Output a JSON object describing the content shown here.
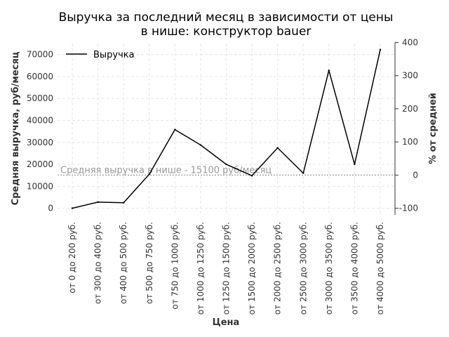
{
  "chart_data": {
    "type": "line",
    "title_lines": [
      "Выручка за последний месяц в зависимости от цены",
      "в нише: конструктор bauer"
    ],
    "xlabel": "Цена",
    "ylabel": "Средняя выручка, руб/месяц",
    "ylabel_right": "% от средней",
    "categories": [
      "от 0 до 200 руб.",
      "от 300 до 400 руб.",
      "от 400 до 500 руб.",
      "от 500 до 750 руб.",
      "от 750 до 1000 руб.",
      "от 1000 до 1250 руб.",
      "от 1250 до 1500 руб.",
      "от 1500 до 2000 руб.",
      "от 2000 до 2500 руб.",
      "от 2500 до 3000 руб.",
      "от 3000 до 3500 руб.",
      "от 3500 до 4000 руб.",
      "от 4000 до 5000 руб."
    ],
    "series": [
      {
        "name": "Выручка",
        "values": [
          0,
          2800,
          2500,
          15500,
          35800,
          28800,
          20000,
          14800,
          27500,
          16000,
          62800,
          20000,
          72200
        ],
        "color": "#000000"
      }
    ],
    "ylim": [
      -3000,
      75000
    ],
    "yticks": [
      0,
      10000,
      20000,
      30000,
      40000,
      50000,
      60000,
      70000
    ],
    "ylim_right_pct": [
      -120,
      400
    ],
    "yticks_right": [
      -100,
      0,
      100,
      200,
      300,
      400
    ],
    "average": {
      "value": 15100,
      "label": "Средняя выручка в нише - 15100 руб/месяц",
      "color": "#999999"
    },
    "legend_position": "top-left",
    "grid": true
  }
}
